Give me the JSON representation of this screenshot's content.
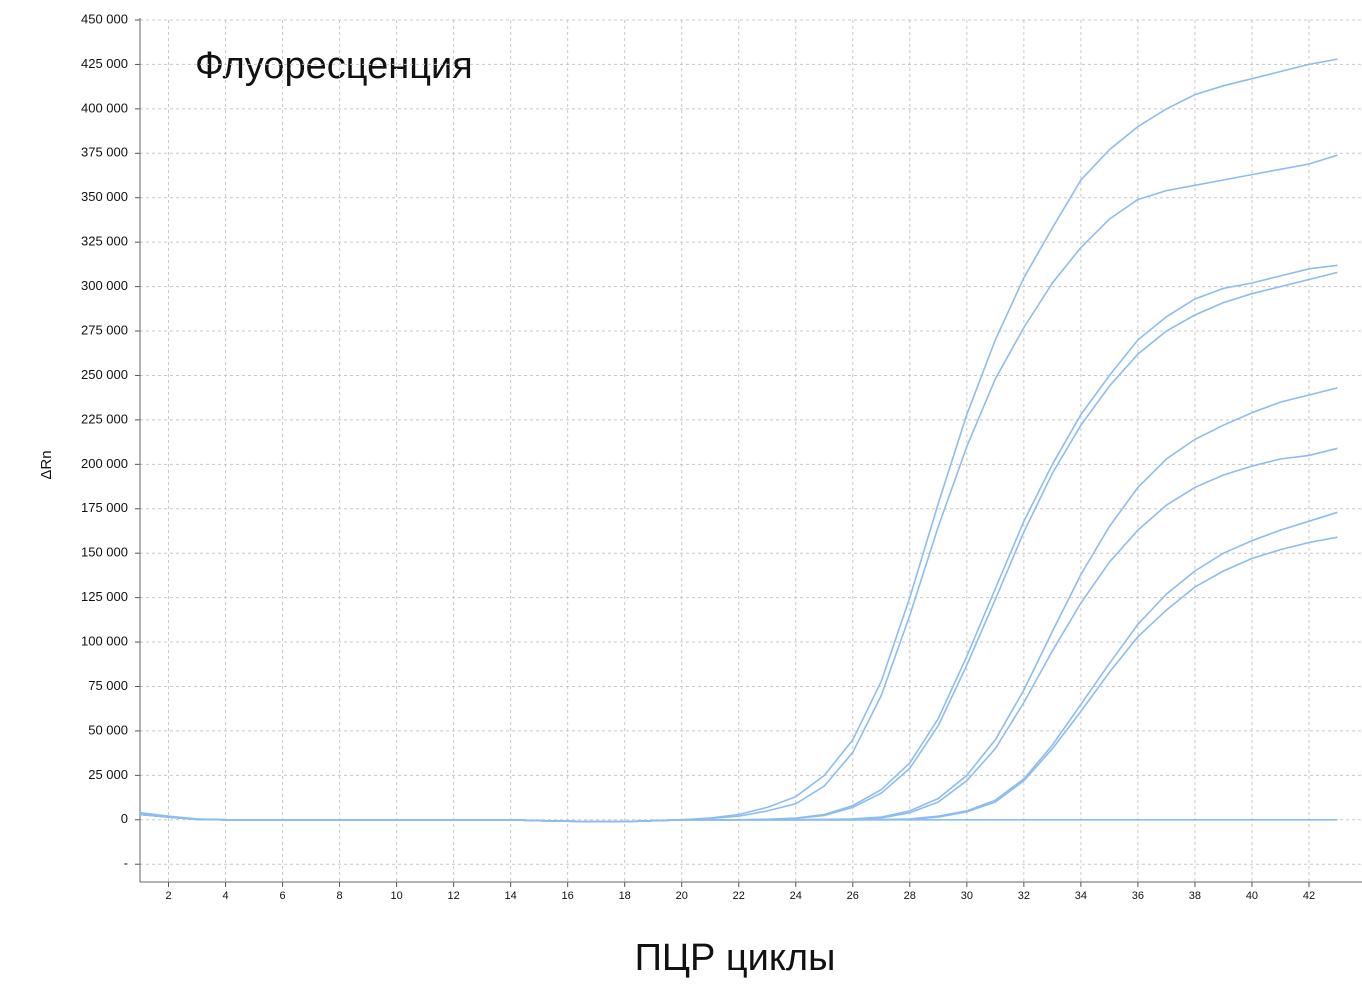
{
  "chart_data": {
    "type": "line",
    "title": "Флуоресценция",
    "x_label": "ПЦР циклы",
    "y_label": "ΔRn",
    "x": [
      1,
      2,
      3,
      4,
      5,
      6,
      7,
      8,
      9,
      10,
      11,
      12,
      13,
      14,
      15,
      16,
      17,
      18,
      19,
      20,
      21,
      22,
      23,
      24,
      25,
      26,
      27,
      28,
      29,
      30,
      31,
      32,
      33,
      34,
      35,
      36,
      37,
      38,
      39,
      40,
      41,
      42,
      43
    ],
    "xlim": [
      1,
      43.86
    ],
    "xticks": [
      2,
      4,
      6,
      8,
      10,
      12,
      14,
      16,
      18,
      20,
      22,
      24,
      26,
      28,
      30,
      32,
      34,
      36,
      38,
      40,
      42
    ],
    "ylim": [
      -35000,
      450000
    ],
    "yticks": [
      {
        "value": -25000,
        "label": "-"
      },
      0,
      {
        "value": 25000,
        "label": "25 000"
      },
      {
        "value": 50000,
        "label": "50 000"
      },
      {
        "value": 75000,
        "label": "75 000"
      },
      {
        "value": 100000,
        "label": "100 000"
      },
      {
        "value": 125000,
        "label": "125 000"
      },
      {
        "value": 150000,
        "label": "150 000"
      },
      {
        "value": 175000,
        "label": "175 000"
      },
      {
        "value": 200000,
        "label": "200 000"
      },
      {
        "value": 225000,
        "label": "225 000"
      },
      {
        "value": 250000,
        "label": "250 000"
      },
      {
        "value": 275000,
        "label": "275 000"
      },
      {
        "value": 300000,
        "label": "300 000"
      },
      {
        "value": 325000,
        "label": "325 000"
      },
      {
        "value": 350000,
        "label": "350 000"
      },
      {
        "value": 375000,
        "label": "375 000"
      },
      {
        "value": 400000,
        "label": "400 000"
      },
      {
        "value": 425000,
        "label": "425 000"
      },
      {
        "value": 450000,
        "label": "450 000"
      }
    ],
    "grid": true,
    "series": [
      {
        "color": "#8dbdf0",
        "values": [
          3000,
          1500,
          300,
          0,
          0,
          0,
          0,
          0,
          0,
          0,
          0,
          0,
          0,
          0,
          -500,
          -800,
          -1000,
          -1000,
          -500,
          0,
          1000,
          3000,
          7000,
          13000,
          25000,
          45000,
          78000,
          125000,
          178000,
          228000,
          270000,
          305000,
          333000,
          360000,
          377000,
          390000,
          400000,
          408000,
          413000,
          417000,
          421000,
          425000,
          428000
        ]
      },
      {
        "color": "#8dbdf0",
        "values": [
          3000,
          1500,
          300,
          0,
          0,
          0,
          0,
          0,
          0,
          0,
          0,
          0,
          0,
          0,
          -500,
          -800,
          -1000,
          -1000,
          -500,
          0,
          800,
          2000,
          5000,
          9000,
          19000,
          38000,
          70000,
          115000,
          165000,
          210000,
          248000,
          277000,
          302000,
          322000,
          338000,
          349000,
          354000,
          357000,
          360000,
          363000,
          366000,
          369000,
          374000
        ]
      },
      {
        "color": "#8dbdf0",
        "values": [
          3000,
          1500,
          300,
          0,
          0,
          0,
          0,
          0,
          0,
          0,
          0,
          0,
          0,
          0,
          -500,
          -800,
          -1000,
          -1000,
          -500,
          0,
          0,
          0,
          300,
          1000,
          3000,
          8000,
          17000,
          32000,
          57000,
          92000,
          130000,
          168000,
          200000,
          228000,
          250000,
          270000,
          283000,
          293000,
          299000,
          302000,
          306000,
          310000,
          312000
        ]
      },
      {
        "color": "#8dbdf0",
        "values": [
          3000,
          1500,
          300,
          0,
          0,
          0,
          0,
          0,
          0,
          0,
          0,
          0,
          0,
          0,
          -500,
          -800,
          -1000,
          -1000,
          -500,
          0,
          0,
          0,
          200,
          800,
          2500,
          7000,
          15000,
          29000,
          53000,
          87000,
          124000,
          162000,
          195000,
          222000,
          244000,
          262000,
          275000,
          284000,
          291000,
          296000,
          300000,
          304000,
          308000
        ]
      },
      {
        "color": "#8dbdf0",
        "values": [
          3000,
          1500,
          300,
          0,
          0,
          0,
          0,
          0,
          0,
          0,
          0,
          0,
          0,
          0,
          -500,
          -800,
          -1000,
          -1000,
          -500,
          0,
          0,
          0,
          0,
          0,
          200,
          500,
          1500,
          5000,
          12000,
          25000,
          45000,
          73000,
          106000,
          138000,
          165000,
          187000,
          203000,
          214000,
          222000,
          229000,
          235000,
          239000,
          243000
        ]
      },
      {
        "color": "#8dbdf0",
        "values": [
          3000,
          1500,
          300,
          0,
          0,
          0,
          0,
          0,
          0,
          0,
          0,
          0,
          0,
          0,
          -500,
          -800,
          -1000,
          -1000,
          -500,
          0,
          0,
          0,
          0,
          0,
          100,
          300,
          1000,
          4000,
          10000,
          22000,
          40000,
          66000,
          95000,
          122000,
          145000,
          163000,
          177000,
          187000,
          194000,
          199000,
          203000,
          205000,
          209000
        ]
      },
      {
        "color": "#8dbdf0",
        "values": [
          3000,
          1500,
          300,
          0,
          0,
          0,
          0,
          0,
          0,
          0,
          0,
          0,
          0,
          0,
          -500,
          -800,
          -1000,
          -1000,
          -500,
          0,
          0,
          0,
          0,
          0,
          0,
          0,
          100,
          500,
          2000,
          5000,
          11000,
          23000,
          42000,
          65000,
          88000,
          110000,
          127000,
          140000,
          150000,
          157000,
          163000,
          168000,
          173000
        ]
      },
      {
        "color": "#8dbdf0",
        "values": [
          3000,
          1500,
          300,
          0,
          0,
          0,
          0,
          0,
          0,
          0,
          0,
          0,
          0,
          0,
          -500,
          -800,
          -1000,
          -1000,
          -500,
          0,
          0,
          0,
          0,
          0,
          0,
          0,
          0,
          300,
          1500,
          4500,
          10000,
          22000,
          40000,
          61000,
          83000,
          103000,
          118000,
          131000,
          140000,
          147000,
          152000,
          156000,
          159000
        ]
      },
      {
        "color": "#8dbdf0",
        "values": [
          4000,
          2000,
          500,
          0,
          0,
          0,
          0,
          0,
          0,
          0,
          0,
          0,
          0,
          0,
          -500,
          -800,
          -1000,
          -1000,
          -500,
          0,
          0,
          0,
          0,
          0,
          0,
          0,
          0,
          0,
          0,
          0,
          0,
          0,
          0,
          0,
          0,
          0,
          0,
          0,
          0,
          0,
          0,
          0,
          0
        ]
      }
    ]
  }
}
